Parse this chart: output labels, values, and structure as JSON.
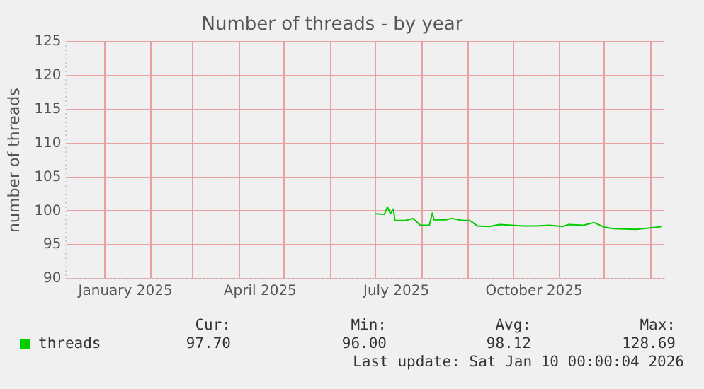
{
  "chart_data": {
    "type": "line",
    "title": "Number of threads - by year",
    "ylabel": "number of threads",
    "x": [
      "2025-07-01",
      "2025-07-07",
      "2025-07-09",
      "2025-07-11",
      "2025-07-13",
      "2025-07-14",
      "2025-07-21",
      "2025-07-26",
      "2025-07-31",
      "2025-08-06",
      "2025-08-08",
      "2025-08-09",
      "2025-08-17",
      "2025-08-21",
      "2025-08-28",
      "2025-09-02",
      "2025-09-04",
      "2025-09-07",
      "2025-09-15",
      "2025-09-22",
      "2025-09-30",
      "2025-10-08",
      "2025-10-17",
      "2025-10-25",
      "2025-11-03",
      "2025-11-07",
      "2025-11-17",
      "2025-11-24",
      "2025-12-01",
      "2025-12-07",
      "2025-12-22",
      "2026-01-05",
      "2026-01-08"
    ],
    "series": [
      {
        "name": "threads",
        "color": "#00cc00",
        "values": [
          99.6,
          99.5,
          100.6,
          99.6,
          100.3,
          98.6,
          98.6,
          98.9,
          97.9,
          97.9,
          99.7,
          98.7,
          98.7,
          98.9,
          98.6,
          98.6,
          98.3,
          97.8,
          97.7,
          98.0,
          97.9,
          97.8,
          97.8,
          97.9,
          97.7,
          98.0,
          97.9,
          98.3,
          97.6,
          97.4,
          97.3,
          97.6,
          97.7
        ]
      }
    ],
    "xlim": [
      "2024-12-06",
      "2026-01-10"
    ],
    "xticks": [
      {
        "value": "2025-01-01",
        "label": null
      },
      {
        "value": "2025-01-15",
        "label": "January 2025"
      },
      {
        "value": "2025-02-01",
        "label": null
      },
      {
        "value": "2025-03-01",
        "label": null
      },
      {
        "value": "2025-04-01",
        "label": null
      },
      {
        "value": "2025-04-15",
        "label": "April 2025"
      },
      {
        "value": "2025-05-01",
        "label": null
      },
      {
        "value": "2025-06-01",
        "label": null
      },
      {
        "value": "2025-07-01",
        "label": null
      },
      {
        "value": "2025-07-15",
        "label": "July 2025"
      },
      {
        "value": "2025-08-01",
        "label": null
      },
      {
        "value": "2025-09-01",
        "label": null
      },
      {
        "value": "2025-10-01",
        "label": null
      },
      {
        "value": "2025-10-15",
        "label": "October 2025"
      },
      {
        "value": "2025-11-01",
        "label": null
      },
      {
        "value": "2025-12-01",
        "label": null
      },
      {
        "value": "2026-01-01",
        "label": null
      }
    ],
    "ylim": [
      90,
      125
    ],
    "yticks": [
      90,
      95,
      100,
      105,
      110,
      115,
      120,
      125
    ],
    "grid": true,
    "legend": "bottom left",
    "marker": "none",
    "line_style": "solid",
    "annotations": [
      "Cur:",
      "Min:",
      "Avg:",
      "Max:",
      "97.70",
      "96.00",
      "98.12",
      "128.69",
      "Last update: Sat Jan 10 00:00:04 2026"
    ]
  }
}
